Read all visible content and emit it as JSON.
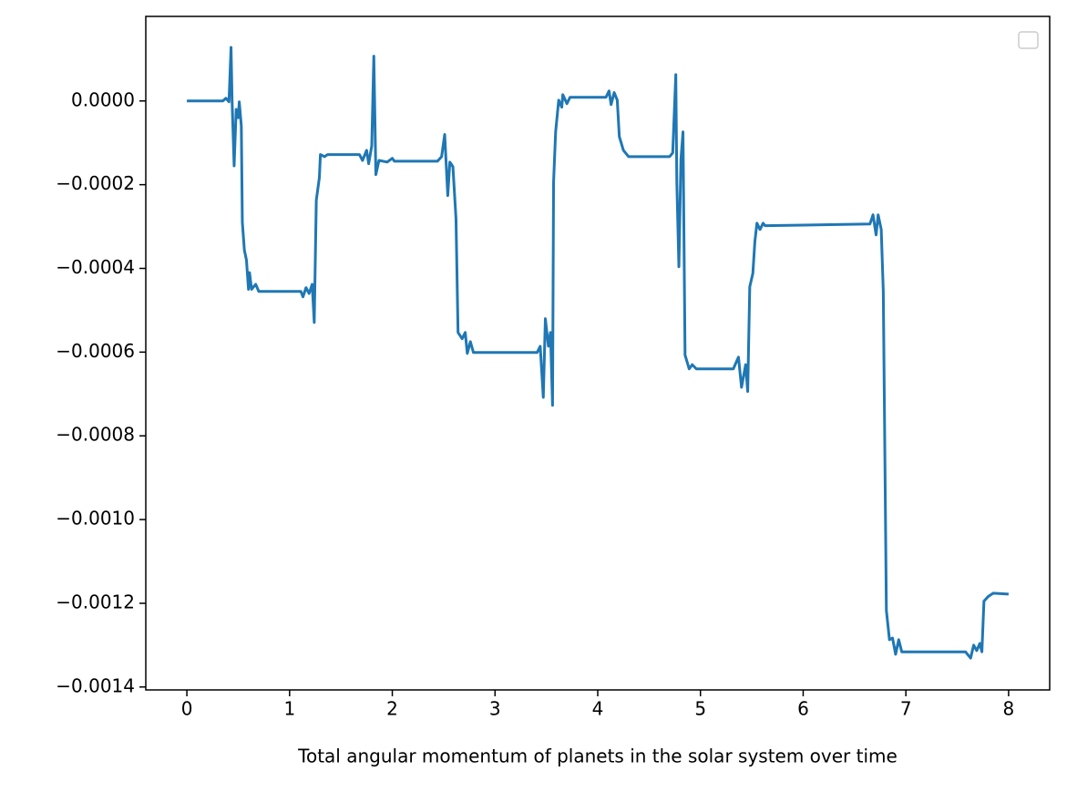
{
  "chart_data": {
    "type": "line",
    "x_label": "Total angular momentum of planets in the solar system over time",
    "x": [
      0,
      0.35,
      0.38,
      0.41,
      0.43,
      0.44,
      0.46,
      0.48,
      0.5,
      0.51,
      0.53,
      0.54,
      0.56,
      0.58,
      0.6,
      0.61,
      0.63,
      0.67,
      0.7,
      1.11,
      1.13,
      1.16,
      1.19,
      1.22,
      1.24,
      1.26,
      1.29,
      1.3,
      1.34,
      1.37,
      1.68,
      1.71,
      1.75,
      1.77,
      1.8,
      1.82,
      1.84,
      1.87,
      1.95,
      2.0,
      2.02,
      2.44,
      2.48,
      2.51,
      2.54,
      2.56,
      2.59,
      2.62,
      2.64,
      2.68,
      2.71,
      2.73,
      2.76,
      2.79,
      3.41,
      3.44,
      3.47,
      3.49,
      3.52,
      3.54,
      3.56,
      3.57,
      3.59,
      3.62,
      3.65,
      3.66,
      3.7,
      3.73,
      4.08,
      4.11,
      4.13,
      4.16,
      4.19,
      4.21,
      4.25,
      4.3,
      4.7,
      4.73,
      4.76,
      4.77,
      4.79,
      4.81,
      4.83,
      4.85,
      4.89,
      4.92,
      4.96,
      5.32,
      5.37,
      5.4,
      5.44,
      5.46,
      5.48,
      5.51,
      5.53,
      5.55,
      5.58,
      5.61,
      5.63,
      6.65,
      6.68,
      6.71,
      6.73,
      6.76,
      6.78,
      6.81,
      6.84,
      6.87,
      6.9,
      6.93,
      6.96,
      7.58,
      7.63,
      7.66,
      7.69,
      7.72,
      7.74,
      7.76,
      7.8,
      7.85,
      8.0
    ],
    "series": [
      {
        "color": "#1f77b4",
        "values": [
          0,
          0,
          6.5e-06,
          -2e-06,
          0.000128,
          2e-06,
          -0.000155,
          -2e-05,
          -4e-05,
          -2e-06,
          -6e-05,
          -0.00029,
          -0.000357,
          -0.00038,
          -0.00045,
          -0.00041,
          -0.00045,
          -0.000438,
          -0.000455,
          -0.000455,
          -0.000468,
          -0.000446,
          -0.00046,
          -0.000438,
          -0.000529,
          -0.000237,
          -0.000183,
          -0.000128,
          -0.000133,
          -0.000128,
          -0.000128,
          -0.000142,
          -0.000118,
          -0.00015,
          -0.000107,
          0.000107,
          -0.000176,
          -0.000142,
          -0.000146,
          -0.000137,
          -0.000144,
          -0.000144,
          -0.000133,
          -8e-05,
          -0.000226,
          -0.000146,
          -0.000157,
          -0.000281,
          -0.000553,
          -0.000568,
          -0.000553,
          -0.000603,
          -0.000575,
          -0.000601,
          -0.000601,
          -0.000586,
          -0.000708,
          -0.00052,
          -0.000586,
          -0.000553,
          -0.000727,
          -0.000194,
          -7.4e-05,
          2e-06,
          -1.5e-05,
          1.5e-05,
          -6.5e-06,
          8.7e-06,
          8.7e-06,
          2.4e-05,
          -8.7e-06,
          2e-05,
          2e-06,
          -8.5e-05,
          -0.000118,
          -0.000133,
          -0.000133,
          -0.000124,
          6.3e-05,
          -0.000194,
          -0.000396,
          -0.000139,
          -7.4e-05,
          -0.000607,
          -0.00064,
          -0.00063,
          -0.00064,
          -0.00064,
          -0.000612,
          -0.000684,
          -0.00063,
          -0.000694,
          -0.000444,
          -0.000412,
          -0.000335,
          -0.000292,
          -0.000307,
          -0.000292,
          -0.000298,
          -0.000294,
          -0.000272,
          -0.00032,
          -0.000272,
          -0.000307,
          -0.000455,
          -0.001217,
          -0.001287,
          -0.001283,
          -0.001322,
          -0.001287,
          -0.001316,
          -0.001316,
          -0.001331,
          -0.0013,
          -0.001313,
          -0.001296,
          -0.001316,
          -0.001195,
          -0.001184,
          -0.001176,
          -0.001178
        ]
      }
    ],
    "xlim": [
      -0.4,
      8.4
    ],
    "xticks": [
      0,
      1,
      2,
      3,
      4,
      5,
      6,
      7,
      8
    ],
    "ylim": [
      -0.001407,
      0.000202
    ],
    "yticks": [
      {
        "value": 0,
        "label": "0.0000"
      },
      {
        "value": -0.0002,
        "label": "−0.0002"
      },
      {
        "value": -0.0004,
        "label": "−0.0004"
      },
      {
        "value": -0.0006,
        "label": "−0.0006"
      },
      {
        "value": -0.0008,
        "label": "−0.0008"
      },
      {
        "value": -0.001,
        "label": "−0.0010"
      },
      {
        "value": -0.0012,
        "label": "−0.0012"
      },
      {
        "value": -0.0014,
        "label": "−0.0014"
      }
    ],
    "grid": false
  }
}
